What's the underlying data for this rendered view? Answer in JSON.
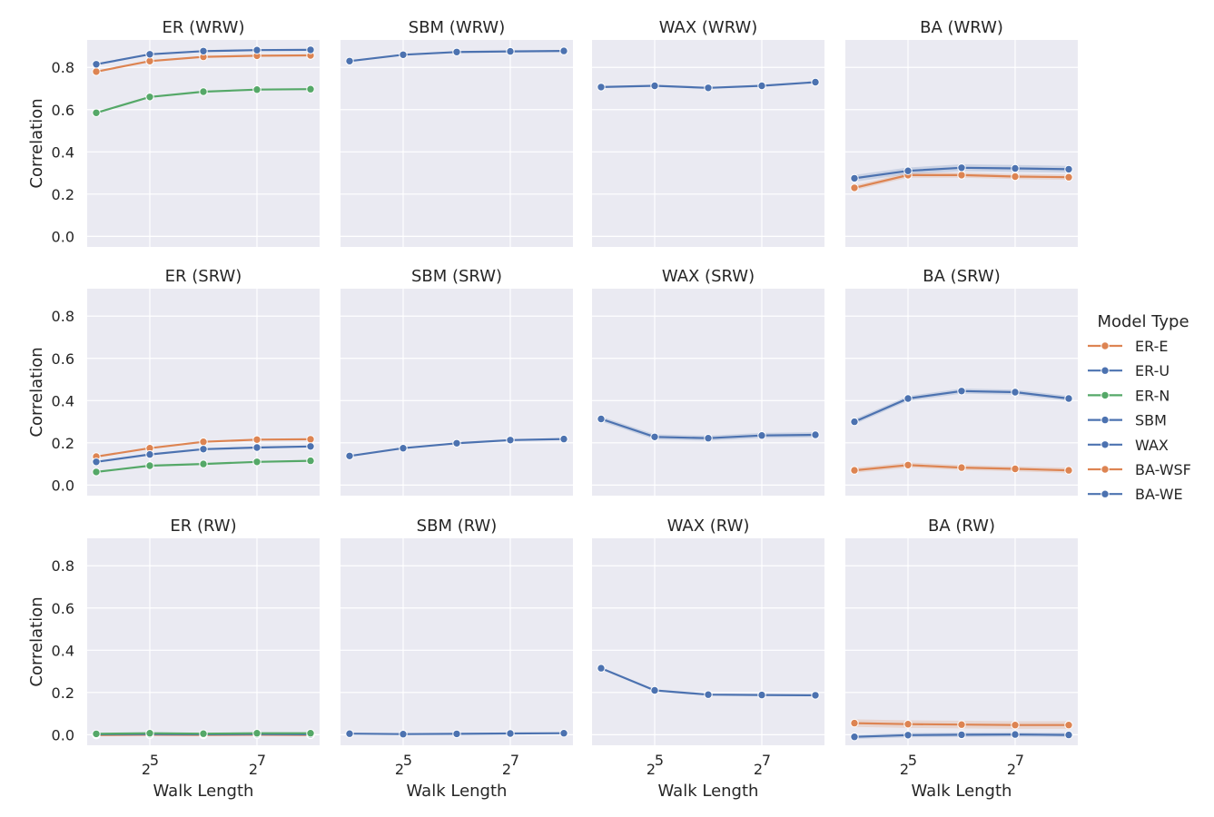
{
  "chart_data": {
    "type": "line",
    "title": "",
    "xlabel": "Walk Length",
    "ylabel": "Correlation",
    "x": [
      16,
      32,
      64,
      128,
      256
    ],
    "x_scale": "log2",
    "x_ticks": [
      {
        "base": "2",
        "exp": "5",
        "value": 32
      },
      {
        "base": "2",
        "exp": "7",
        "value": 128
      }
    ],
    "ylim": [
      -0.05,
      0.93
    ],
    "y_ticks": [
      "0.0",
      "0.2",
      "0.4",
      "0.6",
      "0.8"
    ],
    "grid": true,
    "legend": {
      "title": "Model Type",
      "placement": "right",
      "entries": [
        {
          "name": "ER-E",
          "color": "#dd8452"
        },
        {
          "name": "ER-U",
          "color": "#4c72b0"
        },
        {
          "name": "ER-N",
          "color": "#55a868"
        },
        {
          "name": "SBM",
          "color": "#4c72b0"
        },
        {
          "name": "WAX",
          "color": "#4c72b0"
        },
        {
          "name": "BA-WSF",
          "color": "#dd8452"
        },
        {
          "name": "BA-WE",
          "color": "#4c72b0"
        }
      ]
    },
    "panels": [
      {
        "title": "ER (WRW)",
        "series": [
          {
            "name": "ER-E",
            "values": [
              0.78,
              0.83,
              0.85,
              0.855,
              0.857
            ]
          },
          {
            "name": "ER-U",
            "values": [
              0.815,
              0.862,
              0.877,
              0.882,
              0.883
            ]
          },
          {
            "name": "ER-N",
            "values": [
              0.585,
              0.66,
              0.685,
              0.695,
              0.697
            ]
          }
        ]
      },
      {
        "title": "SBM (WRW)",
        "series": [
          {
            "name": "SBM",
            "values": [
              0.83,
              0.86,
              0.873,
              0.876,
              0.878
            ]
          }
        ]
      },
      {
        "title": "WAX (WRW)",
        "series": [
          {
            "name": "WAX",
            "values": [
              0.707,
              0.713,
              0.703,
              0.713,
              0.73
            ]
          }
        ]
      },
      {
        "title": "BA (WRW)",
        "series": [
          {
            "name": "BA-WSF",
            "values": [
              0.23,
              0.29,
              0.29,
              0.283,
              0.28
            ],
            "band": 0.012
          },
          {
            "name": "BA-WE",
            "values": [
              0.275,
              0.31,
              0.325,
              0.322,
              0.318
            ],
            "band": 0.016
          }
        ]
      },
      {
        "title": "ER (SRW)",
        "series": [
          {
            "name": "ER-E",
            "values": [
              0.135,
              0.175,
              0.205,
              0.215,
              0.217
            ]
          },
          {
            "name": "ER-U",
            "values": [
              0.11,
              0.145,
              0.17,
              0.178,
              0.183
            ]
          },
          {
            "name": "ER-N",
            "values": [
              0.062,
              0.092,
              0.1,
              0.11,
              0.115
            ]
          }
        ]
      },
      {
        "title": "SBM (SRW)",
        "series": [
          {
            "name": "SBM",
            "values": [
              0.138,
              0.175,
              0.198,
              0.213,
              0.218
            ]
          }
        ]
      },
      {
        "title": "WAX (SRW)",
        "series": [
          {
            "name": "WAX",
            "values": [
              0.313,
              0.228,
              0.222,
              0.235,
              0.238
            ],
            "band": 0.012
          }
        ]
      },
      {
        "title": "BA (SRW)",
        "series": [
          {
            "name": "BA-WSF",
            "values": [
              0.07,
              0.095,
              0.083,
              0.077,
              0.07
            ],
            "band": 0.012
          },
          {
            "name": "BA-WE",
            "values": [
              0.3,
              0.41,
              0.445,
              0.44,
              0.41
            ],
            "band": 0.012
          }
        ]
      },
      {
        "title": "ER (RW)",
        "series": [
          {
            "name": "ER-E",
            "values": [
              -0.002,
              0.0,
              -0.001,
              0.0,
              -0.001
            ]
          },
          {
            "name": "ER-U",
            "values": [
              0.002,
              0.003,
              0.002,
              0.003,
              0.002
            ]
          },
          {
            "name": "ER-N",
            "values": [
              0.004,
              0.007,
              0.005,
              0.007,
              0.007
            ]
          }
        ]
      },
      {
        "title": "SBM (RW)",
        "series": [
          {
            "name": "SBM",
            "values": [
              0.005,
              0.003,
              0.004,
              0.006,
              0.007
            ]
          }
        ]
      },
      {
        "title": "WAX (RW)",
        "series": [
          {
            "name": "WAX",
            "values": [
              0.315,
              0.21,
              0.19,
              0.188,
              0.187
            ]
          }
        ]
      },
      {
        "title": "BA (RW)",
        "series": [
          {
            "name": "BA-WSF",
            "values": [
              0.055,
              0.05,
              0.048,
              0.046,
              0.046
            ],
            "band": 0.018
          },
          {
            "name": "BA-WE",
            "values": [
              -0.01,
              -0.002,
              0.0,
              0.001,
              -0.001
            ],
            "band": 0.01
          }
        ]
      }
    ]
  }
}
